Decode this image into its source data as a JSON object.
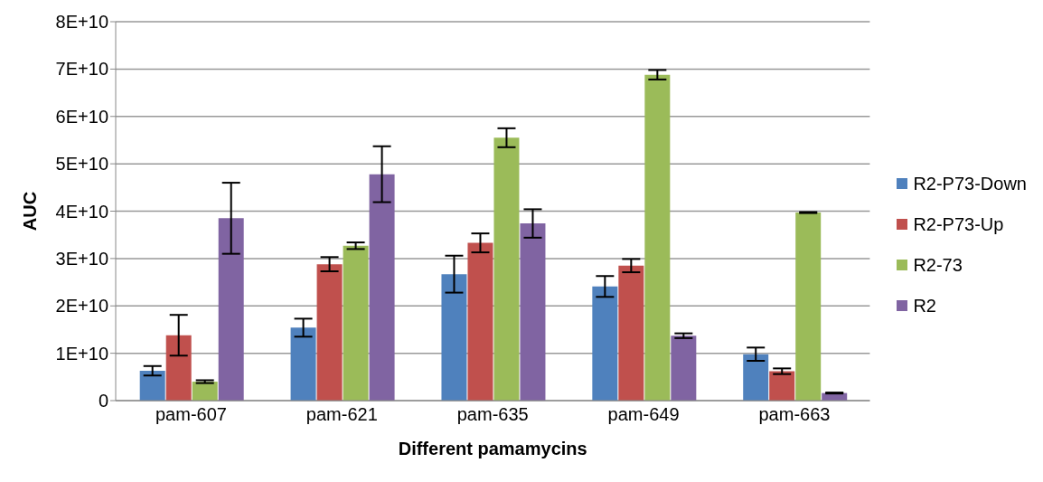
{
  "chart_data": {
    "type": "bar",
    "xlabel": "Different pamamycins",
    "ylabel": "AUC",
    "categories": [
      "pam-607",
      "pam-621",
      "pam-635",
      "pam-649",
      "pam-663"
    ],
    "series": [
      {
        "name": "R2-P73-Down",
        "color": "#4f81bd",
        "values": [
          6300000000,
          15400000000,
          26700000000,
          24100000000,
          9800000000
        ],
        "errors": [
          1000000000,
          1900000000,
          3900000000,
          2200000000,
          1400000000
        ]
      },
      {
        "name": "R2-P73-Up",
        "color": "#c0504d",
        "values": [
          13800000000,
          28800000000,
          33300000000,
          28500000000,
          6200000000
        ],
        "errors": [
          4300000000,
          1500000000,
          2000000000,
          1400000000,
          600000000
        ]
      },
      {
        "name": "R2-73",
        "color": "#9bbb59",
        "values": [
          4000000000,
          32700000000,
          55500000000,
          68800000000,
          39700000000
        ],
        "errors": [
          300000000,
          700000000,
          2000000000,
          1000000000,
          100000000
        ]
      },
      {
        "name": "R2",
        "color": "#8064a2",
        "values": [
          38500000000,
          47800000000,
          37400000000,
          13700000000,
          1600000000
        ],
        "errors": [
          7500000000,
          5900000000,
          3000000000,
          500000000,
          100000000
        ]
      }
    ],
    "ylim": [
      0,
      80000000000
    ],
    "yticks": [
      0,
      {
        "value": 10000000000,
        "label": "1E+10"
      },
      {
        "value": 20000000000,
        "label": "2E+10"
      },
      {
        "value": 30000000000,
        "label": "3E+10"
      },
      {
        "value": 40000000000,
        "label": "4E+10"
      },
      {
        "value": 50000000000,
        "label": "5E+10"
      },
      {
        "value": 60000000000,
        "label": "6E+10"
      },
      {
        "value": 70000000000,
        "label": "7E+10"
      },
      {
        "value": 80000000000,
        "label": "8E+10"
      }
    ],
    "grid": "y",
    "legend": "right"
  }
}
